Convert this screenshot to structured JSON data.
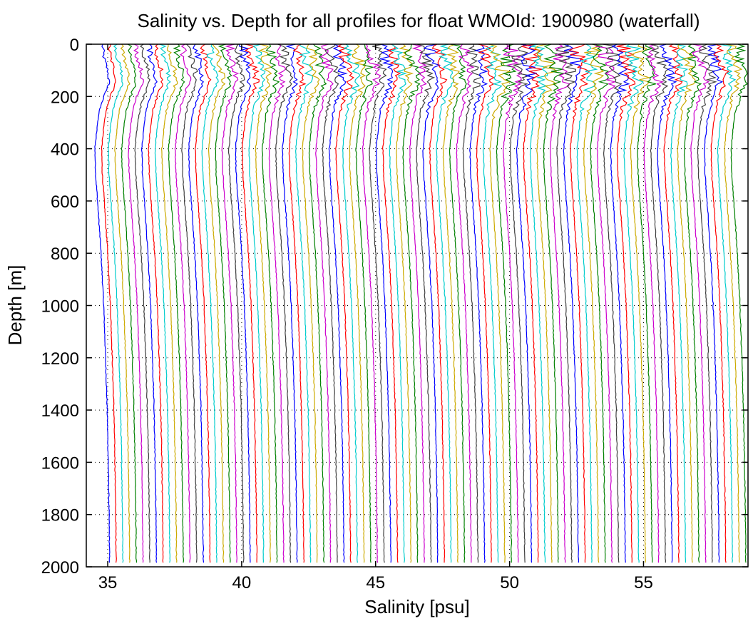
{
  "chart_data": {
    "type": "line",
    "title": "Salinity vs. Depth for all profiles for float WMOId: 1900980 (waterfall)",
    "xlabel": "Salinity [psu]",
    "ylabel": "Depth [m]",
    "xlim": [
      34.2,
      58.9
    ],
    "ylim": [
      0,
      2000
    ],
    "y_reversed": true,
    "grid": true,
    "x_ticks": [
      35,
      40,
      45,
      50,
      55
    ],
    "y_ticks": [
      0,
      200,
      400,
      600,
      800,
      1000,
      1200,
      1400,
      1600,
      1800,
      2000
    ],
    "profile_count": 96,
    "first_profile_offset": 34.8,
    "profile_spacing": 0.25,
    "color_cycle": [
      "#0000ff",
      "#ff0000",
      "#00cccc",
      "#ccaa00",
      "#008000",
      "#cc00cc",
      "#404040"
    ],
    "profile_shape": {
      "depth": [
        0,
        50,
        100,
        150,
        200,
        250,
        300,
        400,
        500,
        600,
        800,
        1000,
        1200,
        1400,
        1600,
        1800,
        1990
      ],
      "salinity_anomaly": [
        0.0,
        0.05,
        0.2,
        0.25,
        0.05,
        -0.1,
        -0.18,
        -0.28,
        -0.25,
        -0.18,
        -0.05,
        0.05,
        0.12,
        0.18,
        0.22,
        0.25,
        0.27
      ]
    }
  }
}
